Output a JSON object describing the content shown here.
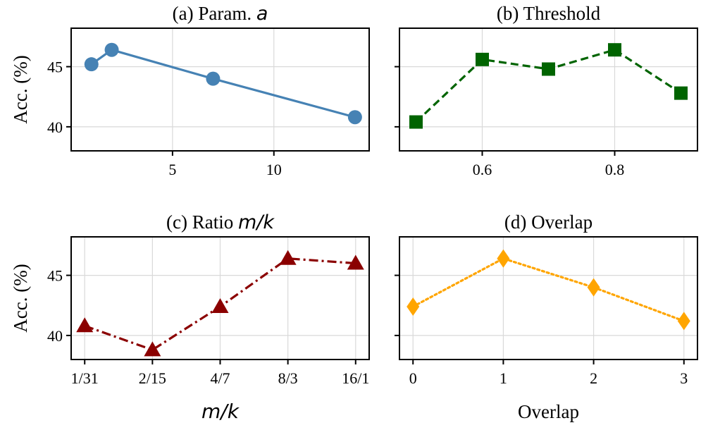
{
  "figure": {
    "shared_ylabel": "Acc. (%)"
  },
  "chart_data": [
    {
      "id": "a",
      "type": "line",
      "title_prefix": "(a) Param. ",
      "title_math": "a",
      "xlabel": "",
      "xlabel_math": "",
      "ylabel": "Acc. (%)",
      "x": [
        1,
        2,
        7,
        14
      ],
      "y": [
        45.2,
        46.4,
        44.0,
        40.8
      ],
      "xlim": [
        0.0,
        14.7
      ],
      "ylim": [
        38.0,
        48.2
      ],
      "xticks": [
        5,
        10
      ],
      "xtick_labels": [
        "5",
        "10"
      ],
      "yticks": [
        40,
        45
      ],
      "ytick_labels": [
        "40",
        "45"
      ],
      "color": "#4682b4",
      "marker": "circle",
      "linestyle": "solid"
    },
    {
      "id": "b",
      "type": "line",
      "title_prefix": "(b) Threshold",
      "title_math": "",
      "xlabel": "",
      "xlabel_math": "",
      "ylabel": "",
      "x": [
        0.5,
        0.6,
        0.7,
        0.8,
        0.9
      ],
      "y": [
        40.4,
        45.6,
        44.8,
        46.4,
        42.8
      ],
      "xlim": [
        0.475,
        0.925
      ],
      "ylim": [
        38.0,
        48.2
      ],
      "xticks": [
        0.6,
        0.8
      ],
      "xtick_labels": [
        "0.6",
        "0.8"
      ],
      "yticks": [
        40,
        45
      ],
      "ytick_labels": [
        "",
        ""
      ],
      "color": "#006400",
      "marker": "square",
      "linestyle": "dashed"
    },
    {
      "id": "c",
      "type": "line",
      "title_prefix": "(c) Ratio ",
      "title_math": "m/k",
      "xlabel": "",
      "xlabel_math": "m/k",
      "ylabel": "Acc. (%)",
      "x": [
        0,
        1,
        2,
        3,
        4
      ],
      "y": [
        40.8,
        38.8,
        42.4,
        46.4,
        46.0
      ],
      "xlim": [
        -0.2,
        4.2
      ],
      "ylim": [
        38.0,
        48.2
      ],
      "xticks": [
        0,
        1,
        2,
        3,
        4
      ],
      "xtick_labels": [
        "1/31",
        "2/15",
        "4/7",
        "8/3",
        "16/1"
      ],
      "yticks": [
        40,
        45
      ],
      "ytick_labels": [
        "40",
        "45"
      ],
      "color": "#8b0000",
      "marker": "triangle",
      "linestyle": "dashdot"
    },
    {
      "id": "d",
      "type": "line",
      "title_prefix": "(d) Overlap",
      "title_math": "",
      "xlabel": "Overlap",
      "xlabel_math": "",
      "ylabel": "",
      "x": [
        0,
        1,
        2,
        3
      ],
      "y": [
        42.4,
        46.4,
        44.0,
        41.2
      ],
      "xlim": [
        -0.15,
        3.15
      ],
      "ylim": [
        38.0,
        48.2
      ],
      "xticks": [
        0,
        1,
        2,
        3
      ],
      "xtick_labels": [
        "0",
        "1",
        "2",
        "3"
      ],
      "yticks": [
        40,
        45
      ],
      "ytick_labels": [
        "",
        ""
      ],
      "color": "#ffa500",
      "marker": "diamond",
      "linestyle": "dotted"
    }
  ]
}
